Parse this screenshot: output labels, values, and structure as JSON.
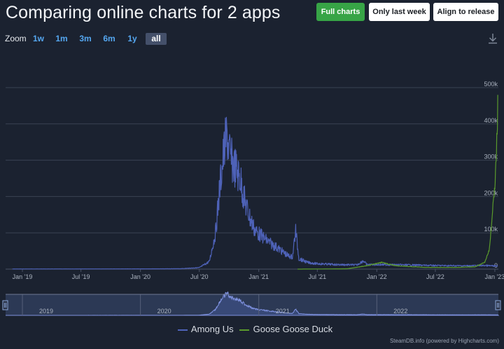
{
  "header": {
    "title": "Comparing online charts for 2 apps",
    "buttons": {
      "full": "Full charts",
      "last_week": "Only last week",
      "align": "Align to release"
    }
  },
  "zoom": {
    "label": "Zoom",
    "options": [
      "1w",
      "1m",
      "3m",
      "6m",
      "1y",
      "all"
    ],
    "active": "all"
  },
  "download_icon": "download-icon",
  "credit": "SteamDB.info (powered by Highcharts.com)",
  "colors": {
    "among_us": "#4e62b8",
    "goose": "#5a9a2c",
    "background": "#1b2230",
    "grid": "#3a4252"
  },
  "chart_data": {
    "type": "line",
    "x_ticks": [
      "Jan '19",
      "Jul '19",
      "Jan '20",
      "Jul '20",
      "Jan '21",
      "Jul '21",
      "Jan '22",
      "Jul '22",
      "Jan '23"
    ],
    "y_ticks": [
      "0",
      "100k",
      "200k",
      "300k",
      "400k",
      "500k"
    ],
    "ylim": [
      0,
      500000
    ],
    "navigator_labels": [
      "2019",
      "2020",
      "2021",
      "2022"
    ],
    "legend": "bottom-center",
    "series": [
      {
        "name": "Among Us",
        "color": "#4e62b8",
        "points": [
          [
            "2018-12-01",
            500
          ],
          [
            "2019-06-01",
            600
          ],
          [
            "2020-01-01",
            800
          ],
          [
            "2020-05-01",
            1200
          ],
          [
            "2020-07-01",
            5000
          ],
          [
            "2020-08-01",
            25000
          ],
          [
            "2020-08-20",
            120000
          ],
          [
            "2020-09-05",
            300000
          ],
          [
            "2020-09-15",
            390000
          ],
          [
            "2020-09-25",
            450000
          ],
          [
            "2020-10-05",
            370000
          ],
          [
            "2020-10-20",
            340000
          ],
          [
            "2020-11-05",
            300000
          ],
          [
            "2020-11-20",
            220000
          ],
          [
            "2020-12-05",
            170000
          ],
          [
            "2020-12-20",
            130000
          ],
          [
            "2021-01-10",
            110000
          ],
          [
            "2021-02-01",
            90000
          ],
          [
            "2021-03-01",
            70000
          ],
          [
            "2021-04-01",
            45000
          ],
          [
            "2021-04-15",
            40000
          ],
          [
            "2021-04-25",
            130000
          ],
          [
            "2021-05-05",
            35000
          ],
          [
            "2021-06-01",
            22000
          ],
          [
            "2021-07-01",
            18000
          ],
          [
            "2021-09-01",
            15000
          ],
          [
            "2021-11-01",
            14000
          ],
          [
            "2021-11-20",
            28000
          ],
          [
            "2021-12-01",
            15000
          ],
          [
            "2022-01-01",
            15000
          ],
          [
            "2022-04-01",
            14000
          ],
          [
            "2022-07-01",
            12000
          ],
          [
            "2022-10-01",
            11000
          ],
          [
            "2022-12-01",
            12000
          ],
          [
            "2023-01-10",
            10000
          ]
        ]
      },
      {
        "name": "Goose Goose Duck",
        "color": "#5a9a2c",
        "points": [
          [
            "2021-05-01",
            0
          ],
          [
            "2021-10-01",
            1000
          ],
          [
            "2021-12-01",
            10000
          ],
          [
            "2022-01-15",
            20000
          ],
          [
            "2022-03-01",
            10000
          ],
          [
            "2022-06-01",
            5000
          ],
          [
            "2022-09-01",
            5000
          ],
          [
            "2022-11-01",
            7000
          ],
          [
            "2022-12-01",
            20000
          ],
          [
            "2022-12-15",
            60000
          ],
          [
            "2022-12-25",
            170000
          ],
          [
            "2023-01-01",
            250000
          ],
          [
            "2023-01-05",
            330000
          ],
          [
            "2023-01-10",
            480000
          ]
        ]
      }
    ]
  }
}
